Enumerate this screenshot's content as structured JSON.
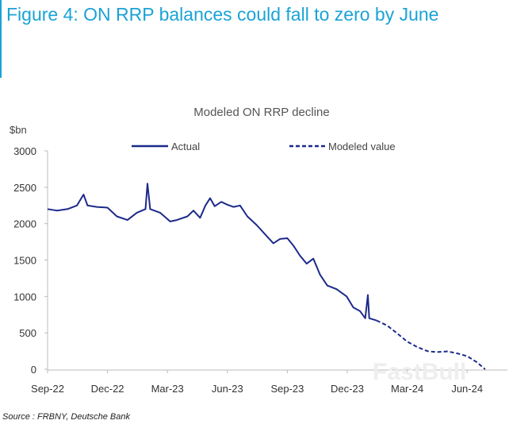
{
  "figure_title": "Figure 4: ON RRP balances could fall to zero by June",
  "source": "Source : FRBNY, Deutsche Bank",
  "colors": {
    "title": "#1aa3d6",
    "series": "#1c2a8a"
  },
  "chart_data": {
    "type": "line",
    "title": "Modeled ON RRP decline",
    "ylabel": "$bn",
    "xlabel": "",
    "ylim": [
      0,
      3000
    ],
    "yticks": [
      "0",
      "500",
      "1000",
      "1500",
      "2000",
      "2500",
      "3000"
    ],
    "xticks": [
      "Sep-22",
      "Dec-22",
      "Mar-23",
      "Jun-23",
      "Sep-23",
      "Dec-23",
      "Mar-24",
      "Jun-24"
    ],
    "legend": "top",
    "grid": false,
    "series": [
      {
        "name": "Actual",
        "style": "solid",
        "points": [
          [
            "2022-09-01",
            2200
          ],
          [
            "2022-09-15",
            2180
          ],
          [
            "2022-10-01",
            2200
          ],
          [
            "2022-10-15",
            2250
          ],
          [
            "2022-10-25",
            2400
          ],
          [
            "2022-11-01",
            2250
          ],
          [
            "2022-11-15",
            2230
          ],
          [
            "2022-12-01",
            2220
          ],
          [
            "2022-12-15",
            2100
          ],
          [
            "2022-12-31",
            2050
          ],
          [
            "2023-01-15",
            2150
          ],
          [
            "2023-01-28",
            2200
          ],
          [
            "2023-02-01",
            2550
          ],
          [
            "2023-02-05",
            2200
          ],
          [
            "2023-02-20",
            2150
          ],
          [
            "2023-03-05",
            2030
          ],
          [
            "2023-03-15",
            2050
          ],
          [
            "2023-03-31",
            2100
          ],
          [
            "2023-04-10",
            2180
          ],
          [
            "2023-04-20",
            2080
          ],
          [
            "2023-04-28",
            2250
          ],
          [
            "2023-05-05",
            2350
          ],
          [
            "2023-05-12",
            2240
          ],
          [
            "2023-05-22",
            2300
          ],
          [
            "2023-06-01",
            2260
          ],
          [
            "2023-06-10",
            2230
          ],
          [
            "2023-06-20",
            2250
          ],
          [
            "2023-07-01",
            2100
          ],
          [
            "2023-07-15",
            1980
          ],
          [
            "2023-07-31",
            1820
          ],
          [
            "2023-08-10",
            1730
          ],
          [
            "2023-08-20",
            1790
          ],
          [
            "2023-09-01",
            1800
          ],
          [
            "2023-09-10",
            1700
          ],
          [
            "2023-09-20",
            1560
          ],
          [
            "2023-09-30",
            1450
          ],
          [
            "2023-10-10",
            1520
          ],
          [
            "2023-10-20",
            1300
          ],
          [
            "2023-11-01",
            1150
          ],
          [
            "2023-11-15",
            1100
          ],
          [
            "2023-11-30",
            1000
          ],
          [
            "2023-12-10",
            850
          ],
          [
            "2023-12-20",
            800
          ],
          [
            "2023-12-28",
            700
          ],
          [
            "2024-01-02",
            1020
          ],
          [
            "2024-01-04",
            700
          ],
          [
            "2024-01-15",
            670
          ]
        ]
      },
      {
        "name": "Modeled value",
        "style": "dashed",
        "points": [
          [
            "2024-01-15",
            670
          ],
          [
            "2024-02-01",
            600
          ],
          [
            "2024-02-15",
            500
          ],
          [
            "2024-03-01",
            380
          ],
          [
            "2024-03-15",
            310
          ],
          [
            "2024-04-01",
            250
          ],
          [
            "2024-04-15",
            235
          ],
          [
            "2024-05-01",
            245
          ],
          [
            "2024-05-15",
            220
          ],
          [
            "2024-06-01",
            180
          ],
          [
            "2024-06-15",
            100
          ],
          [
            "2024-06-28",
            0
          ]
        ]
      }
    ],
    "watermark": "FastBull"
  }
}
